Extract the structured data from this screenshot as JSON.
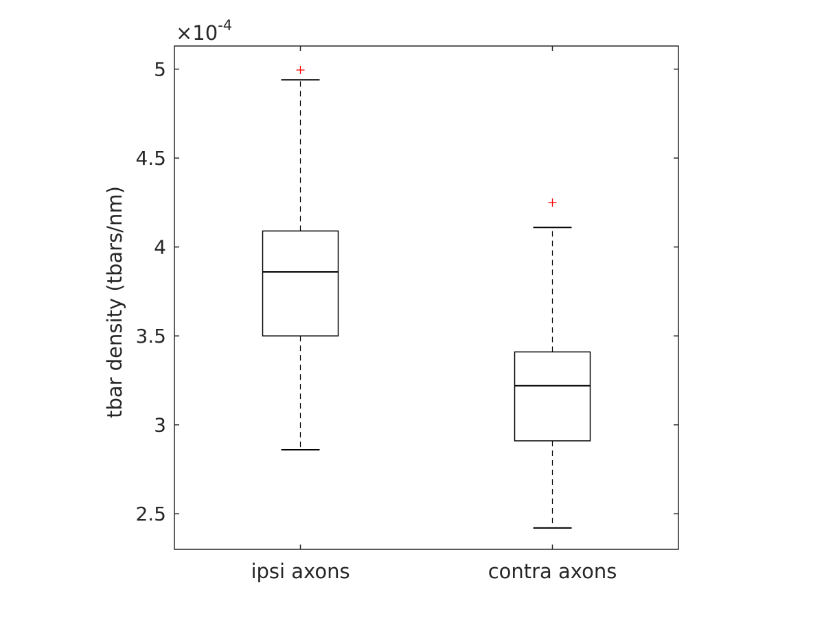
{
  "chart_data": {
    "type": "box",
    "ylabel": "tbar density (tbars/nm)",
    "y_multiplier": "×10",
    "y_multiplier_exponent": "-4",
    "ylim": [
      2.3,
      5.13
    ],
    "yticks": [
      2.5,
      3,
      3.5,
      4,
      4.5,
      5
    ],
    "ytick_labels": [
      "2.5",
      "3",
      "3.5",
      "4",
      "4.5",
      "5"
    ],
    "categories": [
      "ipsi axons",
      "contra axons"
    ],
    "grid": false,
    "boxes": [
      {
        "category": "ipsi axons",
        "whisker_low": 2.86,
        "q1": 3.5,
        "median": 3.86,
        "q3": 4.09,
        "whisker_high": 4.94,
        "outliers": [
          4.995
        ]
      },
      {
        "category": "contra axons",
        "whisker_low": 2.42,
        "q1": 2.91,
        "median": 3.22,
        "q3": 3.41,
        "whisker_high": 4.11,
        "outliers": [
          4.25
        ]
      }
    ],
    "colors": {
      "box": "#000000",
      "outlier": "#ff0000",
      "axis": "#262626"
    }
  }
}
